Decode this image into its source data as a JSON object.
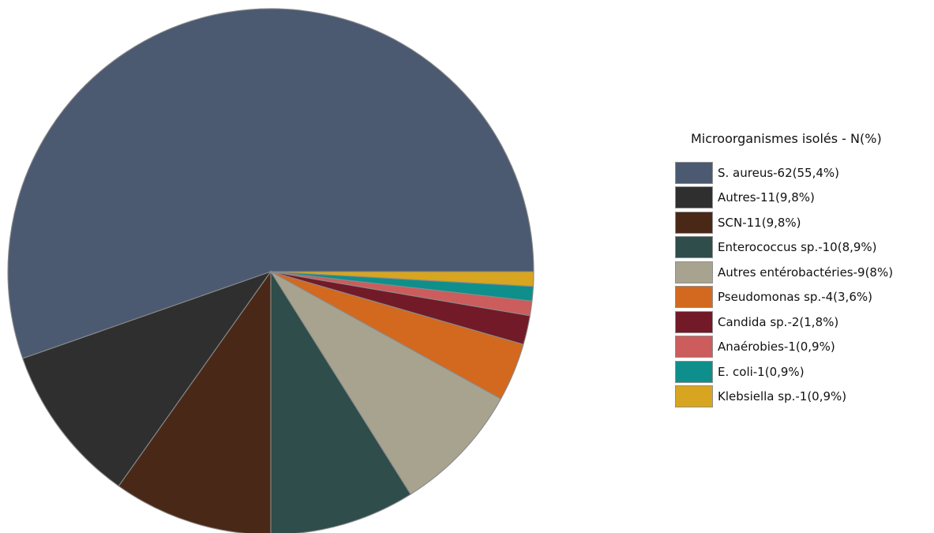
{
  "chart_data": {
    "type": "pie",
    "legend_title": "Microorganismes isolés - N(%)",
    "legend_position": "right",
    "slices": [
      {
        "label": "S. aureus-62(55,4%)",
        "value": 62,
        "color": "#4B5A71"
      },
      {
        "label": "Autres-11(9,8%)",
        "value": 11,
        "color": "#2F2F2F"
      },
      {
        "label": "SCN-11(9,8%)",
        "value": 11,
        "color": "#4A2817"
      },
      {
        "label": "Enterococcus sp.-10(8,9%)",
        "value": 10,
        "color": "#2E4D4B"
      },
      {
        "label": "Autres entérobactéries-9(8%)",
        "value": 9,
        "color": "#A8A38F"
      },
      {
        "label": "Pseudomonas sp.-4(3,6%)",
        "value": 4,
        "color": "#D2691E"
      },
      {
        "label": "Candida sp.-2(1,8%)",
        "value": 2,
        "color": "#721A27"
      },
      {
        "label": "Anaérobies-1(0,9%)",
        "value": 1,
        "color": "#CD5C5C"
      },
      {
        "label": "E. coli-1(0,9%)",
        "value": 1,
        "color": "#0F8F8B"
      },
      {
        "label": "Klebsiella sp.-1(0,9%)",
        "value": 1,
        "color": "#D7A51F"
      }
    ]
  }
}
